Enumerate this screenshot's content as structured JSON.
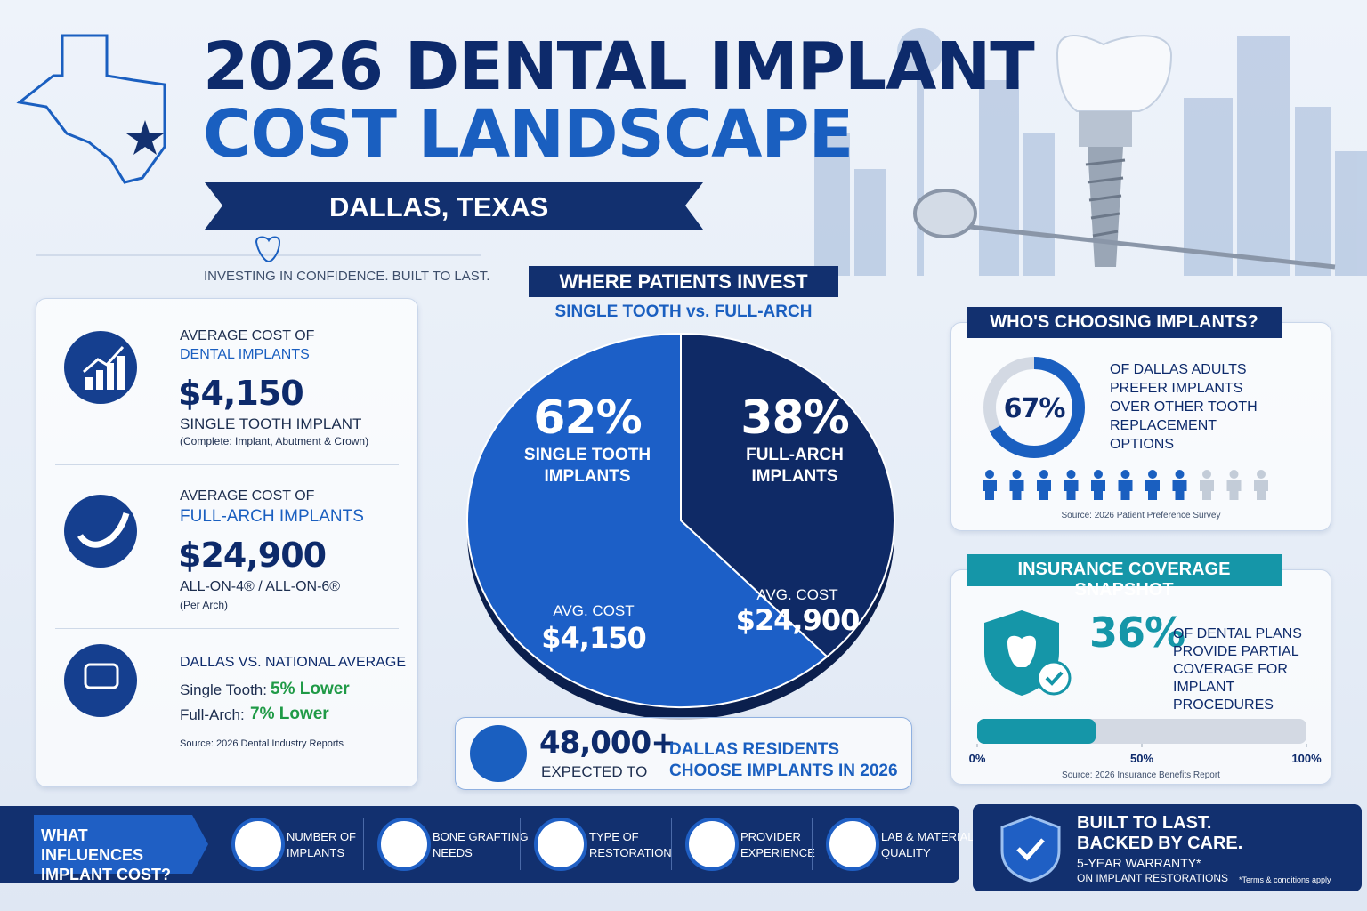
{
  "header": {
    "title_line1": "2026 DENTAL IMPLANT",
    "title_line2": "COST LANDSCAPE",
    "location": "DALLAS, TEXAS",
    "tagline": "INVESTING IN CONFIDENCE. BUILT TO LAST."
  },
  "costs": {
    "items": [
      {
        "label": "AVERAGE COST OF",
        "highlight": "DENTAL IMPLANTS",
        "value": "$4,150",
        "name": "SINGLE TOOTH IMPLANT",
        "note": "(Complete: Implant, Abutment & Crown)"
      },
      {
        "label": "AVERAGE COST OF",
        "highlight": "FULL-ARCH IMPLANTS",
        "value": "$24,900",
        "name": "ALL-ON-4® / ALL-ON-6®",
        "note": "(Per Arch)"
      }
    ],
    "comparison": {
      "title": "DALLAS VS. NATIONAL AVERAGE",
      "rows": [
        {
          "label": "Single Tooth:",
          "value": "5% Lower"
        },
        {
          "label": "Full-Arch:",
          "value": "7% Lower"
        }
      ],
      "source": "Source: 2026 Dental Industry Reports"
    }
  },
  "residents": {
    "value": "48,000+",
    "sub": "EXPECTED TO",
    "line1": "DALLAS RESIDENTS",
    "line2": "CHOOSE IMPLANTS IN 2026"
  },
  "chart_data": [
    {
      "type": "pie",
      "title": "WHERE PATIENTS INVEST",
      "subtitle": "SINGLE TOOTH vs. FULL-ARCH",
      "categories": [
        "SINGLE TOOTH IMPLANTS",
        "FULL-ARCH IMPLANTS"
      ],
      "values": [
        62,
        38
      ],
      "value_labels": [
        "62%",
        "38%"
      ],
      "colors": [
        "#1c5fc7",
        "#0f2a66"
      ],
      "cost_caption": "AVG. COST",
      "cost_labels": [
        "$4,150",
        "$24,900"
      ]
    },
    {
      "type": "donut",
      "title": "WHO'S CHOOSING IMPLANTS?",
      "values": [
        67
      ],
      "value_labels": [
        "67%"
      ],
      "color": "#1a5fc0",
      "text": "OF DALLAS ADULTS PREFER IMPLANTS OVER OTHER TOOTH REPLACEMENT OPTIONS",
      "source": "Source: 2026 Patient Preference Survey"
    },
    {
      "type": "bar",
      "title": "INSURANCE COVERAGE SNAPSHOT",
      "values": [
        36
      ],
      "value_labels": [
        "36%"
      ],
      "color": "#1596a8",
      "xlim": [
        0,
        100
      ],
      "xticks": [
        {
          "value": 0,
          "label": "0%"
        },
        {
          "value": 50,
          "label": "50%"
        },
        {
          "value": 100,
          "label": "100%"
        }
      ],
      "text": "OF DENTAL PLANS PROVIDE PARTIAL COVERAGE FOR IMPLANT PROCEDURES",
      "source": "Source: 2026 Insurance Benefits Report"
    }
  ],
  "footer": {
    "heading": "WHAT INFLUENCES IMPLANT COST?",
    "factors": [
      "NUMBER OF IMPLANTS",
      "BONE GRAFTING NEEDS",
      "TYPE OF RESTORATION",
      "PROVIDER EXPERIENCE",
      "LAB & MATERIAL QUALITY"
    ],
    "badge": {
      "line1": "BUILT TO LAST.",
      "line2": "BACKED BY CARE.",
      "line3": "5-YEAR WARRANTY*",
      "line4": "ON IMPLANT RESTORATIONS",
      "note": "*Terms & conditions apply"
    }
  }
}
